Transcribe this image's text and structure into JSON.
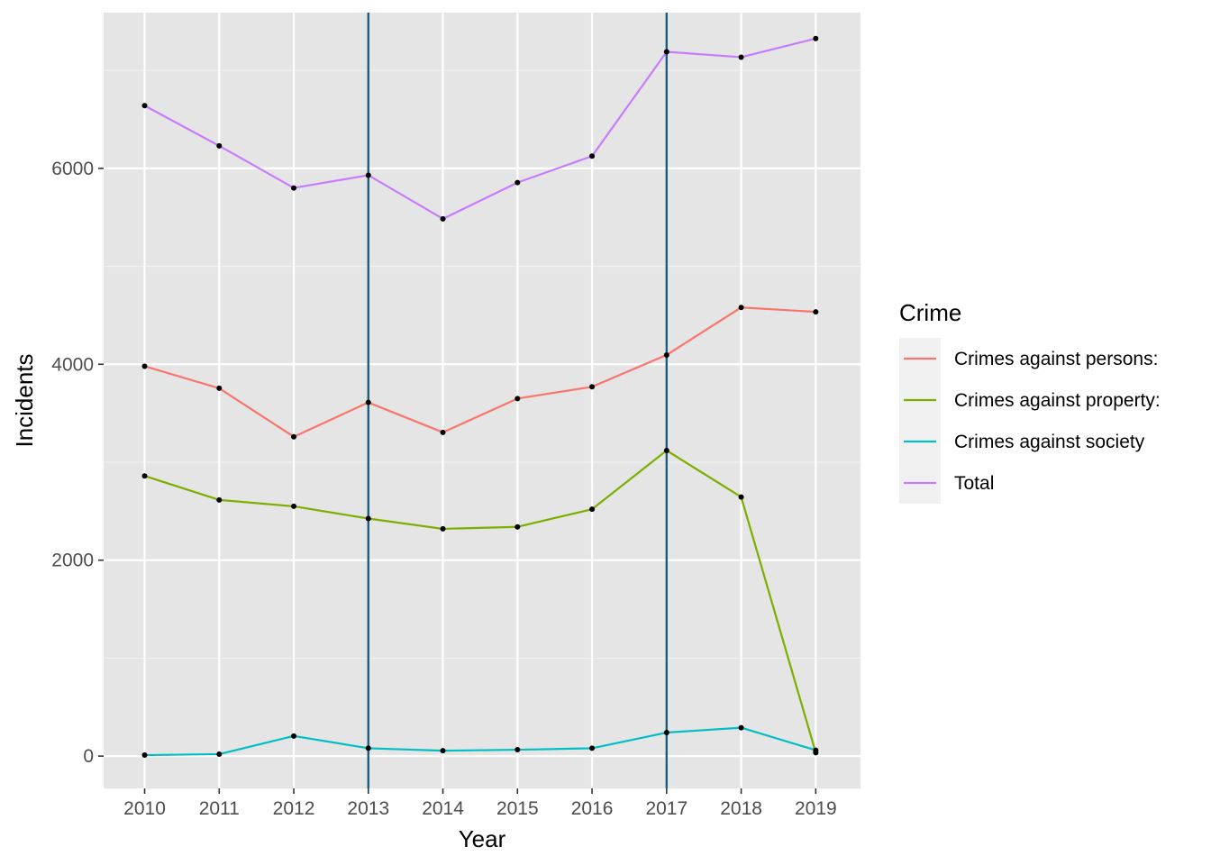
{
  "chart_data": {
    "type": "line",
    "xlabel": "Year",
    "ylabel": "Incidents",
    "x": [
      2010,
      2011,
      2012,
      2013,
      2014,
      2015,
      2016,
      2017,
      2018,
      2019
    ],
    "x_tick_labels": [
      "2010",
      "2011",
      "2012",
      "2013",
      "2014",
      "2015",
      "2016",
      "2017",
      "2018",
      "2019"
    ],
    "y_ticks": [
      0,
      2000,
      4000,
      6000
    ],
    "y_tick_labels": [
      "0",
      "2000",
      "4000",
      "6000"
    ],
    "xlim": [
      2009.45,
      2019.6
    ],
    "ylim": [
      -330,
      7590
    ],
    "grid": true,
    "legend": {
      "title": "Crime",
      "position": "right"
    },
    "vlines": [
      {
        "x": 2013,
        "color": "#1b5e7f"
      },
      {
        "x": 2017,
        "color": "#1b5e7f"
      }
    ],
    "series": [
      {
        "name": "Crimes against persons:",
        "color": "#F8766D",
        "values": [
          3980,
          3755,
          3260,
          3610,
          3305,
          3650,
          3770,
          4095,
          4580,
          4535
        ]
      },
      {
        "name": "Crimes against property:",
        "color": "#7CAE00",
        "values": [
          2860,
          2615,
          2550,
          2425,
          2320,
          2340,
          2520,
          3120,
          2645,
          35
        ]
      },
      {
        "name": "Crimes against society",
        "color": "#00BFC4",
        "values": [
          10,
          20,
          205,
          80,
          55,
          65,
          80,
          240,
          290,
          60
        ]
      },
      {
        "name": "Total",
        "color": "#C77CFF",
        "values": [
          6640,
          6230,
          5800,
          5930,
          5485,
          5855,
          6125,
          7190,
          7135,
          7325
        ]
      }
    ],
    "point_color": "#000000"
  }
}
